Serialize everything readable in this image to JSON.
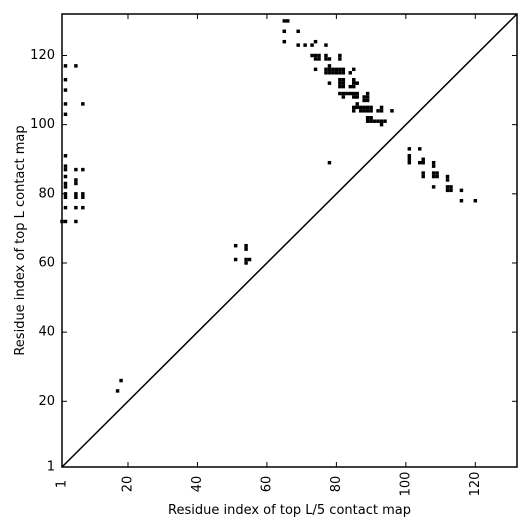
{
  "chart_data": {
    "type": "scatter",
    "title": "",
    "xlabel": "Residue index of top L/5 contact map",
    "ylabel": "Residue index of top L contact map",
    "xlim": [
      1,
      132
    ],
    "ylim": [
      1,
      132
    ],
    "xticks": [
      {
        "value": 1,
        "label": "1"
      },
      {
        "value": 20,
        "label": "20"
      },
      {
        "value": 40,
        "label": "40"
      },
      {
        "value": 60,
        "label": "60"
      },
      {
        "value": 80,
        "label": "80"
      },
      {
        "value": 100,
        "label": "100"
      },
      {
        "value": 120,
        "label": "120"
      }
    ],
    "yticks": [
      {
        "value": 1,
        "label": "1"
      },
      {
        "value": 20,
        "label": "20"
      },
      {
        "value": 40,
        "label": "40"
      },
      {
        "value": 60,
        "label": "60"
      },
      {
        "value": 80,
        "label": "80"
      },
      {
        "value": 100,
        "label": "100"
      },
      {
        "value": 120,
        "label": "120"
      }
    ],
    "grid": false,
    "diagonal": true,
    "marker_color": "#000000",
    "points": [
      [
        1,
        72
      ],
      [
        2,
        72
      ],
      [
        2,
        76
      ],
      [
        2,
        79
      ],
      [
        2,
        80
      ],
      [
        2,
        82
      ],
      [
        2,
        83
      ],
      [
        2,
        85
      ],
      [
        2,
        87
      ],
      [
        2,
        88
      ],
      [
        2,
        91
      ],
      [
        2,
        103
      ],
      [
        2,
        106
      ],
      [
        2,
        110
      ],
      [
        2,
        113
      ],
      [
        2,
        117
      ],
      [
        5,
        72
      ],
      [
        5,
        76
      ],
      [
        5,
        79
      ],
      [
        5,
        80
      ],
      [
        5,
        83
      ],
      [
        5,
        84
      ],
      [
        5,
        87
      ],
      [
        5,
        117
      ],
      [
        7,
        76
      ],
      [
        7,
        79
      ],
      [
        7,
        80
      ],
      [
        7,
        87
      ],
      [
        7,
        106
      ],
      [
        17,
        23
      ],
      [
        18,
        26
      ],
      [
        51,
        61
      ],
      [
        51,
        65
      ],
      [
        54,
        60
      ],
      [
        54,
        61
      ],
      [
        54,
        64
      ],
      [
        54,
        65
      ],
      [
        55,
        61
      ],
      [
        65,
        124
      ],
      [
        65,
        127
      ],
      [
        65,
        130
      ],
      [
        66,
        130
      ],
      [
        69,
        123
      ],
      [
        69,
        127
      ],
      [
        71,
        123
      ],
      [
        73,
        120
      ],
      [
        73,
        123
      ],
      [
        74,
        116
      ],
      [
        74,
        119
      ],
      [
        74,
        120
      ],
      [
        74,
        124
      ],
      [
        75,
        119
      ],
      [
        75,
        120
      ],
      [
        77,
        115
      ],
      [
        77,
        116
      ],
      [
        77,
        119
      ],
      [
        77,
        120
      ],
      [
        77,
        123
      ],
      [
        78,
        89
      ],
      [
        78,
        112
      ],
      [
        78,
        115
      ],
      [
        78,
        116
      ],
      [
        78,
        117
      ],
      [
        78,
        119
      ],
      [
        79,
        115
      ],
      [
        79,
        116
      ],
      [
        80,
        115
      ],
      [
        80,
        116
      ],
      [
        81,
        109
      ],
      [
        81,
        111
      ],
      [
        81,
        112
      ],
      [
        81,
        113
      ],
      [
        81,
        115
      ],
      [
        81,
        116
      ],
      [
        81,
        119
      ],
      [
        81,
        120
      ],
      [
        82,
        108
      ],
      [
        82,
        109
      ],
      [
        82,
        111
      ],
      [
        82,
        112
      ],
      [
        82,
        113
      ],
      [
        82,
        115
      ],
      [
        82,
        116
      ],
      [
        83,
        109
      ],
      [
        84,
        109
      ],
      [
        84,
        111
      ],
      [
        84,
        115
      ],
      [
        85,
        104
      ],
      [
        85,
        105
      ],
      [
        85,
        108
      ],
      [
        85,
        109
      ],
      [
        85,
        111
      ],
      [
        85,
        112
      ],
      [
        85,
        113
      ],
      [
        85,
        116
      ],
      [
        86,
        105
      ],
      [
        86,
        106
      ],
      [
        86,
        108
      ],
      [
        86,
        109
      ],
      [
        86,
        112
      ],
      [
        87,
        104
      ],
      [
        87,
        105
      ],
      [
        88,
        104
      ],
      [
        88,
        105
      ],
      [
        88,
        107
      ],
      [
        88,
        108
      ],
      [
        89,
        101
      ],
      [
        89,
        102
      ],
      [
        89,
        104
      ],
      [
        89,
        105
      ],
      [
        89,
        107
      ],
      [
        89,
        108
      ],
      [
        89,
        109
      ],
      [
        90,
        101
      ],
      [
        90,
        102
      ],
      [
        90,
        104
      ],
      [
        90,
        105
      ],
      [
        91,
        101
      ],
      [
        92,
        101
      ],
      [
        92,
        104
      ],
      [
        93,
        100
      ],
      [
        93,
        101
      ],
      [
        93,
        104
      ],
      [
        93,
        105
      ],
      [
        94,
        101
      ],
      [
        96,
        104
      ],
      [
        101,
        89
      ],
      [
        101,
        90
      ],
      [
        101,
        91
      ],
      [
        101,
        93
      ],
      [
        104,
        89
      ],
      [
        104,
        93
      ],
      [
        105,
        85
      ],
      [
        105,
        86
      ],
      [
        105,
        89
      ],
      [
        105,
        90
      ],
      [
        108,
        82
      ],
      [
        108,
        85
      ],
      [
        108,
        86
      ],
      [
        108,
        88
      ],
      [
        108,
        89
      ],
      [
        109,
        85
      ],
      [
        109,
        86
      ],
      [
        112,
        81
      ],
      [
        112,
        82
      ],
      [
        112,
        84
      ],
      [
        112,
        85
      ],
      [
        113,
        81
      ],
      [
        113,
        82
      ],
      [
        116,
        78
      ],
      [
        116,
        81
      ],
      [
        120,
        78
      ]
    ]
  }
}
